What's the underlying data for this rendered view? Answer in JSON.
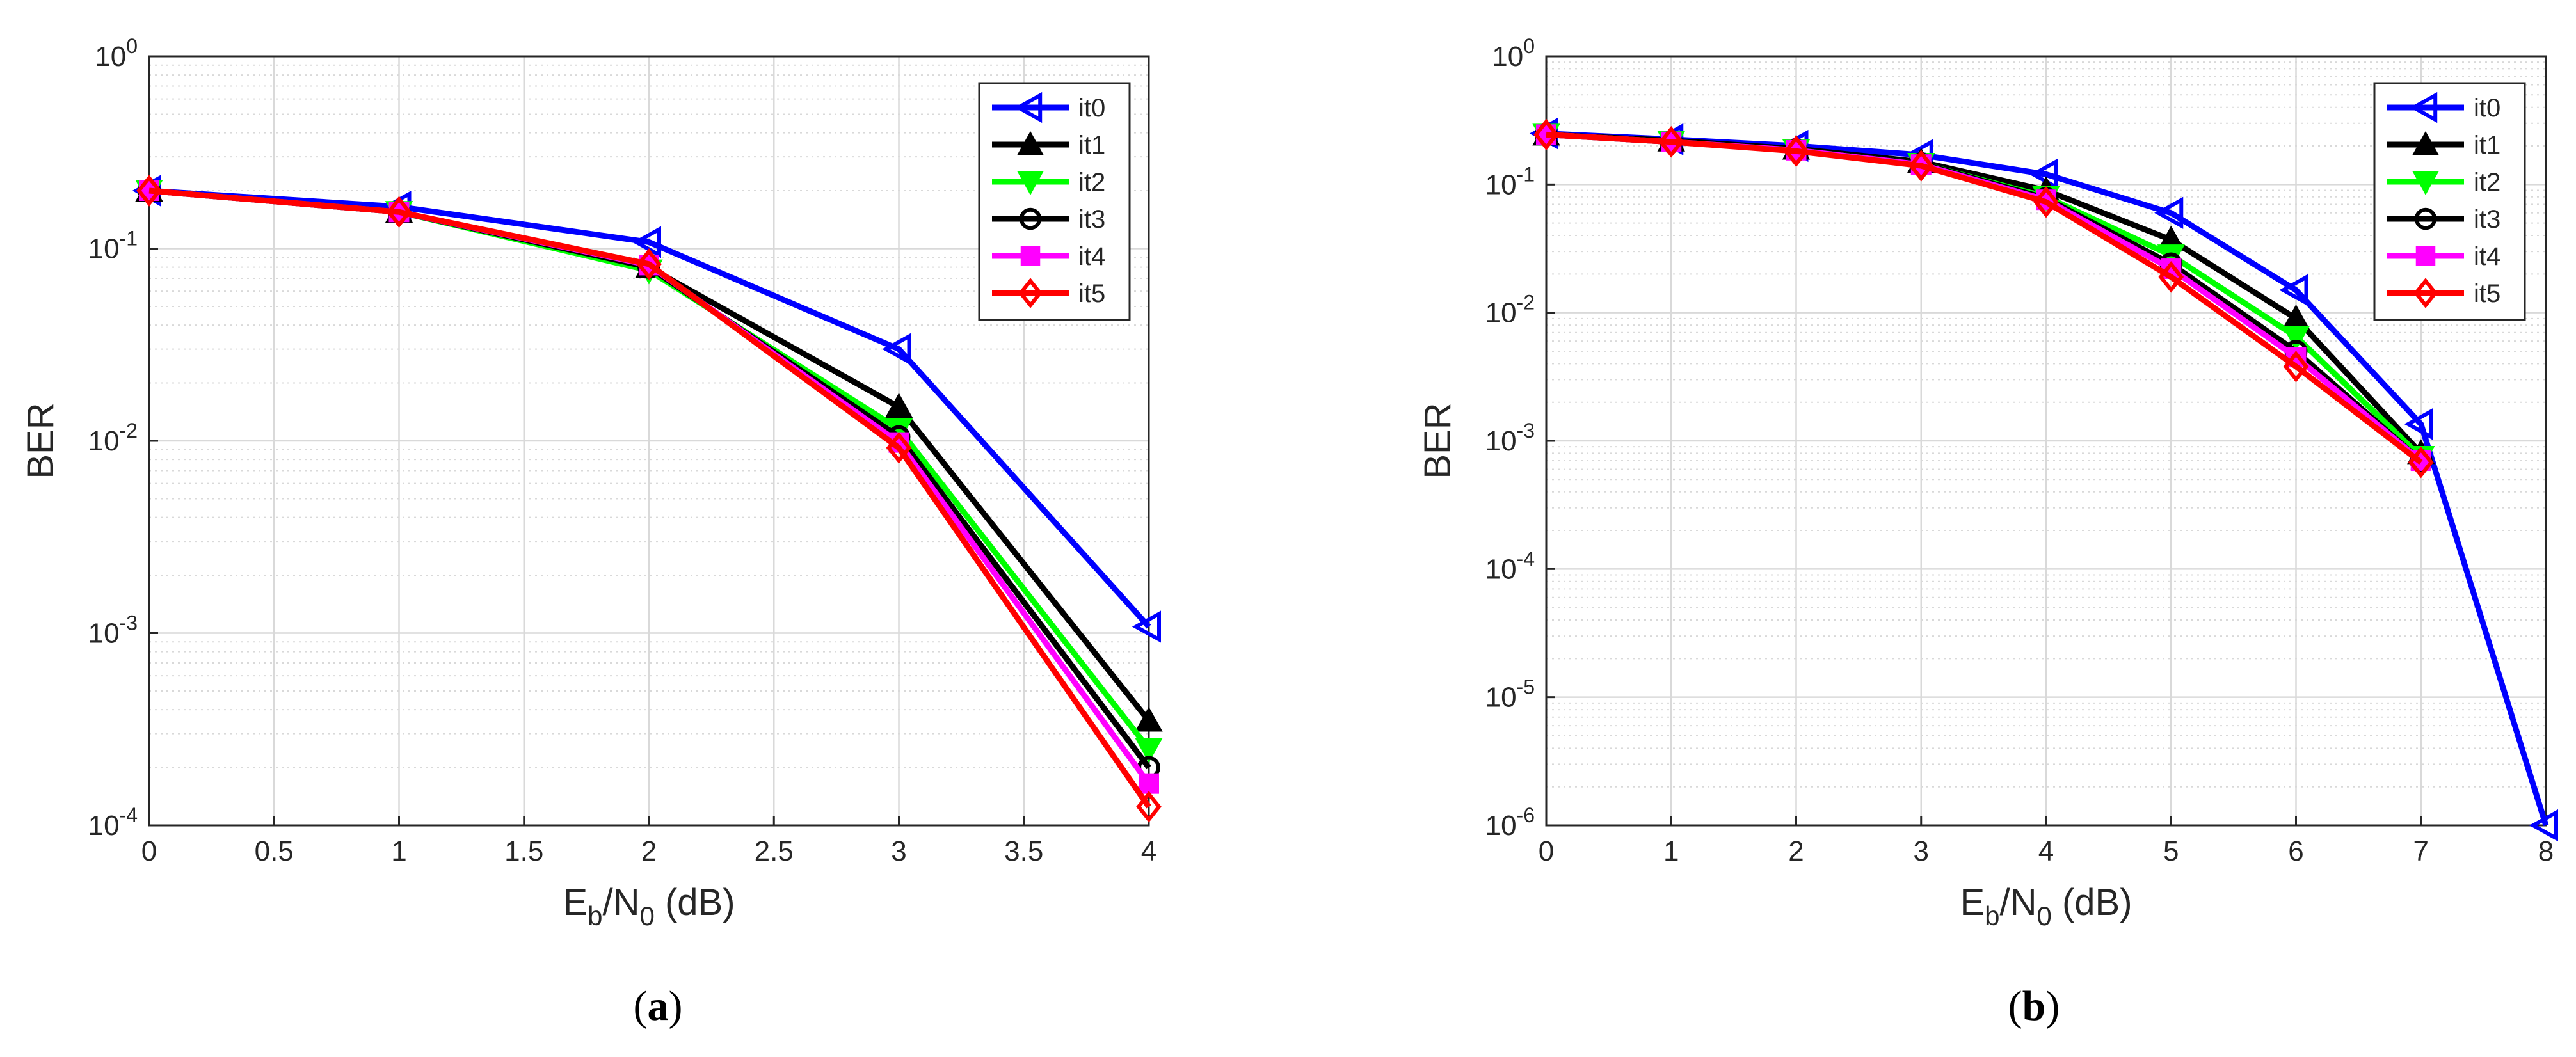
{
  "colors": {
    "it0": "#0000ff",
    "it1": "#000000",
    "it2": "#00ff00",
    "it3": "#000000",
    "it4": "#ff00ff",
    "it5": "#ff0000",
    "grid": "#d9d9d9",
    "axis": "#262626"
  },
  "chart_data": [
    {
      "type": "line",
      "panel_label": "a",
      "xscale": "linear",
      "yscale": "log",
      "xlabel": "E_b/N_0 (dB)",
      "ylabel": "BER",
      "xlim": [
        0,
        4
      ],
      "ylim": [
        0.0001,
        1
      ],
      "xticks": [
        0,
        0.5,
        1,
        1.5,
        2,
        2.5,
        3,
        3.5,
        4
      ],
      "xtick_labels": [
        "0",
        "0.5",
        "1",
        "1.5",
        "2",
        "2.5",
        "3",
        "3.5",
        "4"
      ],
      "yticks": [
        0.0001,
        0.001,
        0.01,
        0.1,
        1
      ],
      "ytick_labels": [
        {
          "base": "10",
          "exp": "-4"
        },
        {
          "base": "10",
          "exp": "-3"
        },
        {
          "base": "10",
          "exp": "-2"
        },
        {
          "base": "10",
          "exp": "-1"
        },
        {
          "base": "10",
          "exp": "0"
        }
      ],
      "grid": true,
      "legend_position": "top-right",
      "series": [
        {
          "name": "it0",
          "marker": "triangle-left",
          "x": [
            0,
            1,
            2,
            3,
            4
          ],
          "y": [
            0.2,
            0.165,
            0.108,
            0.03,
            0.00108
          ]
        },
        {
          "name": "it1",
          "marker": "triangle-up",
          "x": [
            0,
            1,
            2,
            3,
            4
          ],
          "y": [
            0.2,
            0.155,
            0.08,
            0.015,
            0.00035
          ]
        },
        {
          "name": "it2",
          "marker": "triangle-down",
          "x": [
            0,
            1,
            2,
            3,
            4
          ],
          "y": [
            0.2,
            0.155,
            0.077,
            0.0115,
            0.00025
          ]
        },
        {
          "name": "it3",
          "marker": "circle",
          "x": [
            0,
            1,
            2,
            3,
            4
          ],
          "y": [
            0.2,
            0.155,
            0.08,
            0.0105,
            0.0002
          ]
        },
        {
          "name": "it4",
          "marker": "square",
          "x": [
            0,
            1,
            2,
            3,
            4
          ],
          "y": [
            0.2,
            0.155,
            0.082,
            0.0098,
            0.000165
          ]
        },
        {
          "name": "it5",
          "marker": "diamond",
          "x": [
            0,
            1,
            2,
            3,
            4
          ],
          "y": [
            0.2,
            0.155,
            0.083,
            0.0092,
            0.000125
          ]
        }
      ]
    },
    {
      "type": "line",
      "panel_label": "b",
      "xscale": "linear",
      "yscale": "log",
      "xlabel": "E_b/N_0 (dB)",
      "ylabel": "BER",
      "xlim": [
        0,
        8
      ],
      "ylim": [
        1e-06,
        1
      ],
      "xticks": [
        0,
        1,
        2,
        3,
        4,
        5,
        6,
        7,
        8
      ],
      "xtick_labels": [
        "0",
        "1",
        "2",
        "3",
        "4",
        "5",
        "6",
        "7",
        "8"
      ],
      "yticks": [
        1e-06,
        1e-05,
        0.0001,
        0.001,
        0.01,
        0.1,
        1
      ],
      "ytick_labels": [
        {
          "base": "10",
          "exp": "-6"
        },
        {
          "base": "10",
          "exp": "-5"
        },
        {
          "base": "10",
          "exp": "-4"
        },
        {
          "base": "10",
          "exp": "-3"
        },
        {
          "base": "10",
          "exp": "-2"
        },
        {
          "base": "10",
          "exp": "-1"
        },
        {
          "base": "10",
          "exp": "0"
        }
      ],
      "grid": true,
      "legend_position": "top-right",
      "series": [
        {
          "name": "it0",
          "marker": "triangle-left",
          "x": [
            0,
            1,
            2,
            3,
            4,
            5,
            6,
            7,
            8
          ],
          "y": [
            0.25,
            0.225,
            0.2,
            0.17,
            0.12,
            0.06,
            0.015,
            0.00135,
            1e-06
          ]
        },
        {
          "name": "it1",
          "marker": "triangle-up",
          "x": [
            0,
            1,
            2,
            3,
            4,
            5,
            6,
            7
          ],
          "y": [
            0.245,
            0.22,
            0.19,
            0.15,
            0.09,
            0.037,
            0.009,
            0.0008
          ]
        },
        {
          "name": "it2",
          "marker": "triangle-down",
          "x": [
            0,
            1,
            2,
            3,
            4,
            5,
            6,
            7
          ],
          "y": [
            0.245,
            0.215,
            0.185,
            0.145,
            0.08,
            0.028,
            0.0065,
            0.00075
          ]
        },
        {
          "name": "it3",
          "marker": "circle",
          "x": [
            0,
            1,
            2,
            3,
            4,
            5,
            6,
            7
          ],
          "y": [
            0.245,
            0.215,
            0.185,
            0.145,
            0.078,
            0.024,
            0.005,
            0.0007
          ]
        },
        {
          "name": "it4",
          "marker": "square",
          "x": [
            0,
            1,
            2,
            3,
            4,
            5,
            6,
            7
          ],
          "y": [
            0.245,
            0.215,
            0.185,
            0.143,
            0.076,
            0.022,
            0.0045,
            0.0007
          ]
        },
        {
          "name": "it5",
          "marker": "diamond",
          "x": [
            0,
            1,
            2,
            3,
            4,
            5,
            6,
            7
          ],
          "y": [
            0.245,
            0.215,
            0.182,
            0.14,
            0.073,
            0.019,
            0.0038,
            0.00068
          ]
        }
      ]
    }
  ],
  "captions": {
    "a": {
      "open": "(",
      "label": "a",
      "close": ")"
    },
    "b": {
      "open": "(",
      "label": "b",
      "close": ")"
    }
  },
  "axis_text": {
    "xlabel_parts": {
      "E": "E",
      "b": "b",
      "slash": "/N",
      "zero": "0",
      "unit": " (dB)"
    },
    "ylabel": "BER"
  }
}
